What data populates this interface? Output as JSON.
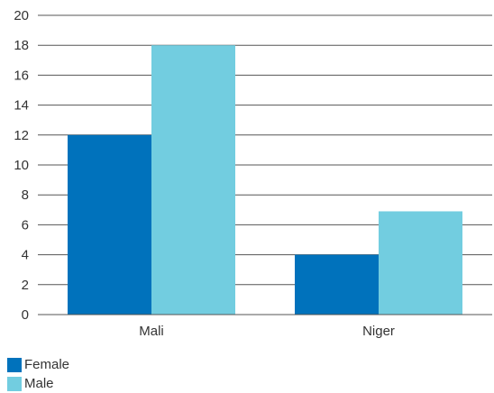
{
  "chart_data": {
    "type": "bar",
    "categories": [
      "Mali",
      "Niger"
    ],
    "series": [
      {
        "name": "Female",
        "values": [
          12,
          4
        ],
        "color": "#0072bc"
      },
      {
        "name": "Male",
        "values": [
          18,
          6.9
        ],
        "color": "#72cde0"
      }
    ],
    "ylim": [
      0,
      20
    ],
    "yticks": [
      "0",
      "2",
      "4",
      "6",
      "8",
      "10",
      "12",
      "14",
      "16",
      "18",
      "20"
    ],
    "title": "",
    "xlabel": "",
    "ylabel": "",
    "grid": true,
    "legend_position": "bottom-left"
  }
}
